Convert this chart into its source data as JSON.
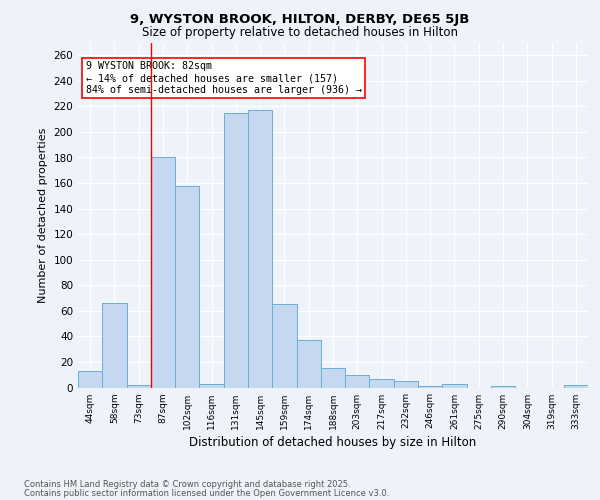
{
  "title1": "9, WYSTON BROOK, HILTON, DERBY, DE65 5JB",
  "title2": "Size of property relative to detached houses in Hilton",
  "xlabel": "Distribution of detached houses by size in Hilton",
  "ylabel": "Number of detached properties",
  "categories": [
    "44sqm",
    "58sqm",
    "73sqm",
    "87sqm",
    "102sqm",
    "116sqm",
    "131sqm",
    "145sqm",
    "159sqm",
    "174sqm",
    "188sqm",
    "203sqm",
    "217sqm",
    "232sqm",
    "246sqm",
    "261sqm",
    "275sqm",
    "290sqm",
    "304sqm",
    "319sqm",
    "333sqm"
  ],
  "values": [
    13,
    66,
    2,
    180,
    158,
    3,
    215,
    217,
    65,
    37,
    15,
    10,
    7,
    5,
    1,
    3,
    0,
    1,
    0,
    0,
    2
  ],
  "bar_color": "#c5d8f0",
  "bar_edge_color": "#6baed6",
  "red_line_index": 3,
  "property_label": "9 WYSTON BROOK: 82sqm",
  "annotation_line1": "← 14% of detached houses are smaller (157)",
  "annotation_line2": "84% of semi-detached houses are larger (936) →",
  "ylim": [
    0,
    270
  ],
  "yticks": [
    0,
    20,
    40,
    60,
    80,
    100,
    120,
    140,
    160,
    180,
    200,
    220,
    240,
    260
  ],
  "footnote1": "Contains HM Land Registry data © Crown copyright and database right 2025.",
  "footnote2": "Contains public sector information licensed under the Open Government Licence v3.0.",
  "bg_color": "#eef2f9"
}
